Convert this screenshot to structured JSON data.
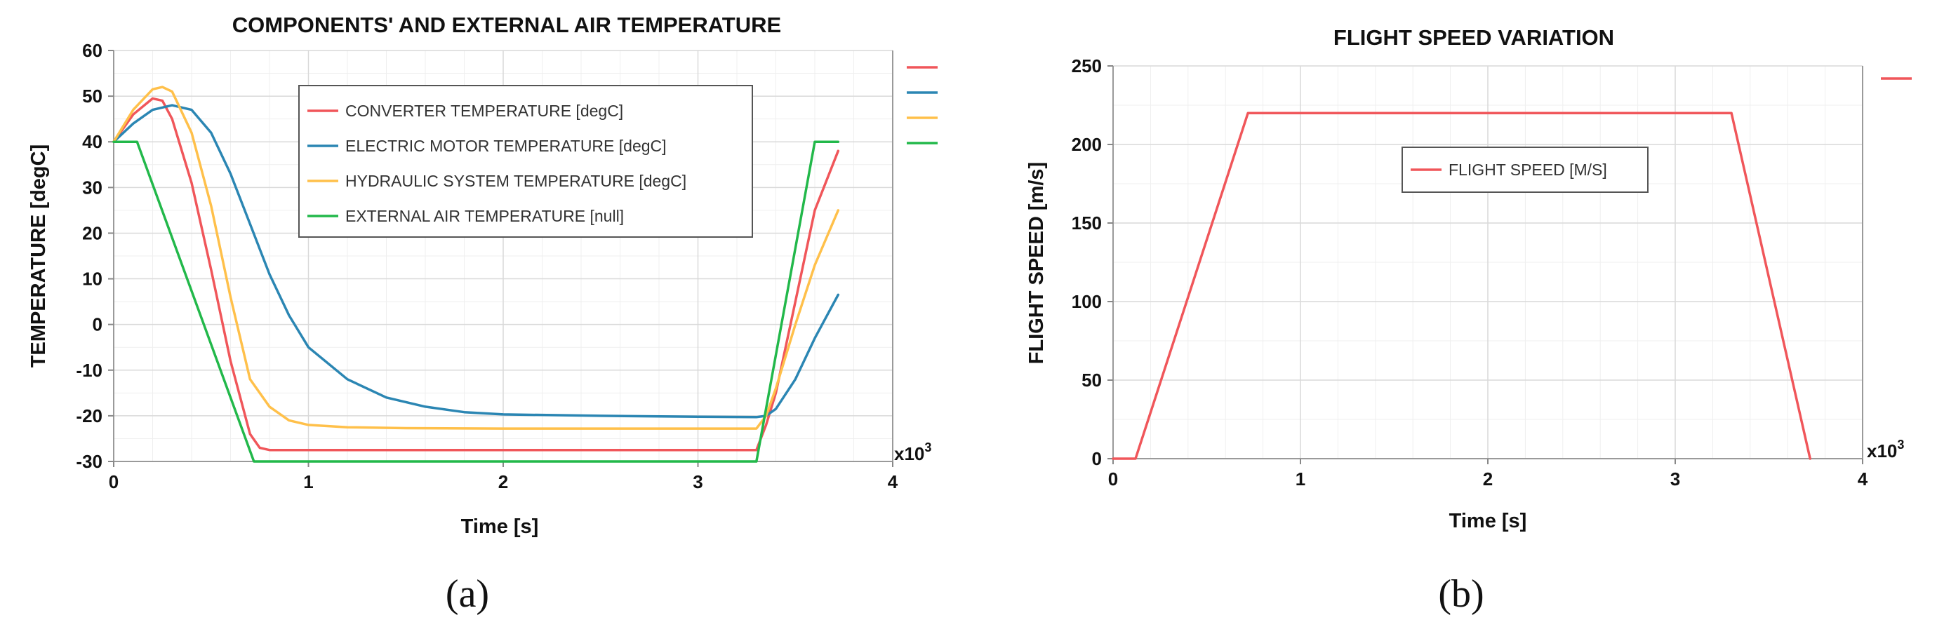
{
  "chart_data": [
    {
      "type": "line",
      "title": "COMPONENTS' AND EXTERNAL AIR TEMPERATURE",
      "xlabel": "Time [s]",
      "ylabel": "TEMPERATURE [degC]",
      "x_scale_label": "x10",
      "x_scale_exp": "3",
      "xlim": [
        0,
        4
      ],
      "ylim": [
        -30,
        60
      ],
      "xticks": [
        0,
        1,
        2,
        3,
        4
      ],
      "yticks": [
        -30,
        -20,
        -10,
        0,
        10,
        20,
        30,
        40,
        50,
        60
      ],
      "grid": true,
      "legend_position": "top-center",
      "panel_label": "(a)",
      "series": [
        {
          "name": "CONVERTER TEMPERATURE [degC]",
          "color": "#f0565a",
          "x": [
            0,
            0.1,
            0.2,
            0.25,
            0.3,
            0.4,
            0.5,
            0.6,
            0.7,
            0.75,
            0.8,
            1.0,
            1.5,
            2.0,
            2.5,
            3.0,
            3.3,
            3.35,
            3.4,
            3.5,
            3.6,
            3.72
          ],
          "y": [
            40,
            46,
            49.5,
            49,
            45,
            31,
            12,
            -8,
            -24,
            -27,
            -27.5,
            -27.5,
            -27.5,
            -27.5,
            -27.5,
            -27.5,
            -27.5,
            -22,
            -15,
            5,
            25,
            38
          ]
        },
        {
          "name": "ELECTRIC MOTOR TEMPERATURE [degC]",
          "color": "#2b86b3",
          "x": [
            0,
            0.1,
            0.2,
            0.3,
            0.4,
            0.5,
            0.6,
            0.7,
            0.8,
            0.9,
            1.0,
            1.2,
            1.4,
            1.6,
            1.8,
            2.0,
            2.5,
            3.0,
            3.3,
            3.35,
            3.4,
            3.5,
            3.6,
            3.72
          ],
          "y": [
            40,
            44,
            47,
            48,
            47,
            42,
            33,
            22,
            11,
            2,
            -5,
            -12,
            -16,
            -18,
            -19.2,
            -19.7,
            -20,
            -20.2,
            -20.3,
            -20,
            -18.5,
            -12,
            -3,
            6.5
          ]
        },
        {
          "name": "HYDRAULIC SYSTEM TEMPERATURE [degC]",
          "color": "#ffc04a",
          "x": [
            0,
            0.1,
            0.2,
            0.25,
            0.3,
            0.4,
            0.5,
            0.6,
            0.7,
            0.8,
            0.9,
            1.0,
            1.2,
            1.5,
            2.0,
            2.5,
            3.0,
            3.3,
            3.35,
            3.4,
            3.5,
            3.6,
            3.72
          ],
          "y": [
            40,
            47,
            51.5,
            52,
            51,
            42,
            26,
            6,
            -12,
            -18,
            -21,
            -22,
            -22.5,
            -22.7,
            -22.8,
            -22.8,
            -22.8,
            -22.8,
            -20,
            -14,
            0,
            13,
            25
          ]
        },
        {
          "name": "EXTERNAL AIR TEMPERATURE [null]",
          "color": "#22b84a",
          "x": [
            0,
            0.12,
            0.72,
            3.3,
            3.6,
            3.72
          ],
          "y": [
            40,
            40,
            -30,
            -30,
            40,
            40
          ]
        }
      ]
    },
    {
      "type": "line",
      "title": "FLIGHT SPEED VARIATION",
      "xlabel": "Time [s]",
      "ylabel": "FLIGHT SPEED [m/s]",
      "x_scale_label": "x10",
      "x_scale_exp": "3",
      "xlim": [
        0,
        4
      ],
      "ylim": [
        0,
        250
      ],
      "xticks": [
        0,
        1,
        2,
        3,
        4
      ],
      "yticks": [
        0,
        50,
        100,
        150,
        200,
        250
      ],
      "grid": true,
      "legend_position": "top-center",
      "panel_label": "(b)",
      "series": [
        {
          "name": "FLIGHT SPEED [M/S]",
          "color": "#f0565a",
          "x": [
            0,
            0.12,
            0.72,
            3.3,
            3.72
          ],
          "y": [
            0,
            0,
            220,
            220,
            0
          ]
        }
      ]
    }
  ]
}
